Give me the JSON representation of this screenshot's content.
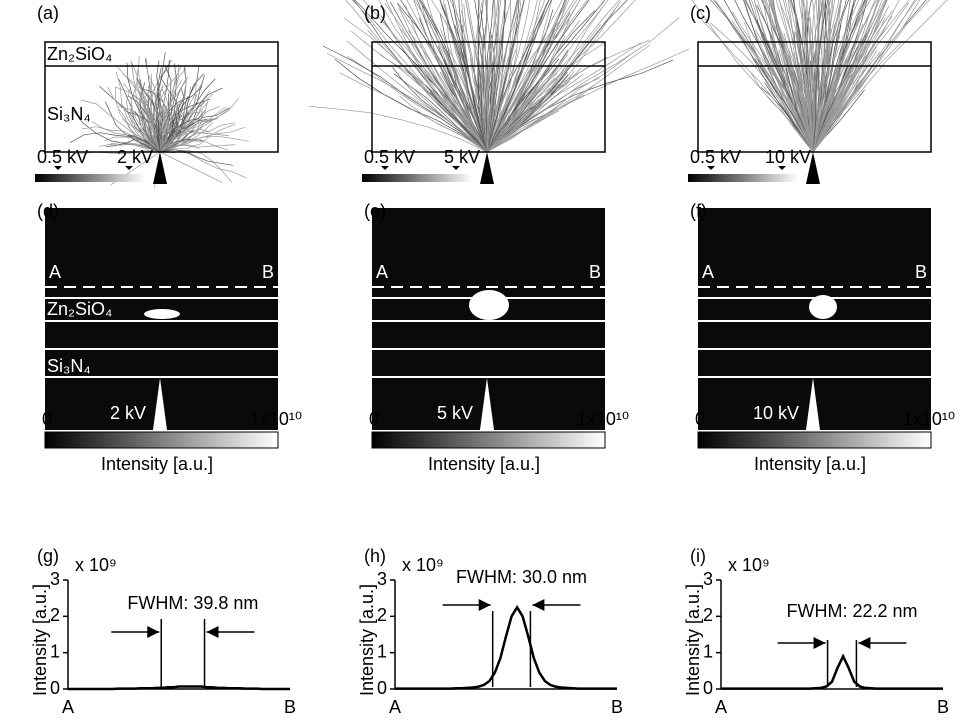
{
  "panels": [
    {
      "label": "(a)",
      "layer_top": "Zn₂SiO₄",
      "layer_bottom": "Si₃N₄",
      "scale_min": "0.5 kV",
      "scale_max": "2 kV"
    },
    {
      "label": "(b)",
      "scale_min": "0.5 kV",
      "scale_max": "5 kV"
    },
    {
      "label": "(c)",
      "scale_min": "0.5 kV",
      "scale_max": "10 kV"
    }
  ],
  "maps": [
    {
      "label": "(d)",
      "point_a": "A",
      "point_b": "B",
      "layer_top": "Zn₂SiO₄",
      "layer_bottom": "Si₃N₄",
      "voltage": "2 kV",
      "cbar_min": "0",
      "cbar_max": "1x10¹⁰",
      "cbar_label": "Intensity [a.u.]"
    },
    {
      "label": "(e)",
      "point_a": "A",
      "point_b": "B",
      "voltage": "5 kV",
      "cbar_min": "0",
      "cbar_max": "1x10¹⁰",
      "cbar_label": "Intensity [a.u.]"
    },
    {
      "label": "(f)",
      "point_a": "A",
      "point_b": "B",
      "voltage": "10 kV",
      "cbar_min": "0",
      "cbar_max": "1x10¹⁰",
      "cbar_label": "Intensity [a.u.]"
    }
  ],
  "chart_data": [
    {
      "type": "line",
      "panel": "(g)",
      "multiplier": "x 10⁹",
      "annotation": "FWHM: 39.8 nm",
      "y_label": "Intensity [a.u.]",
      "color": "#000000",
      "categories": [
        "A",
        null,
        null,
        null,
        null,
        null,
        null,
        null,
        null,
        null,
        null,
        null,
        null,
        null,
        null,
        null,
        null,
        null,
        null,
        null,
        null,
        null,
        null,
        null,
        null,
        null,
        null,
        null,
        null,
        null,
        null,
        null,
        null,
        null,
        null,
        null,
        null,
        null,
        null,
        null,
        "B"
      ],
      "values": [
        0,
        0,
        0,
        0,
        0,
        0,
        0,
        0,
        0,
        0.01,
        0.01,
        0.01,
        0.01,
        0.02,
        0.02,
        0.02,
        0.03,
        0.03,
        0.05,
        0.05,
        0.07,
        0.07,
        0.07,
        0.07,
        0.07,
        0.05,
        0.05,
        0.03,
        0.03,
        0.02,
        0.02,
        0.02,
        0.01,
        0.01,
        0.01,
        0,
        0,
        0,
        0,
        0,
        0
      ],
      "ylim": [
        0,
        3
      ],
      "yticks": [
        0,
        1,
        2,
        3
      ]
    },
    {
      "type": "line",
      "panel": "(h)",
      "multiplier": "x 10⁹",
      "annotation": "FWHM: 30.0 nm",
      "y_label": "Intensity [a.u.]",
      "color": "#000000",
      "categories": [
        "A",
        null,
        null,
        null,
        null,
        null,
        null,
        null,
        null,
        null,
        null,
        null,
        null,
        null,
        null,
        null,
        null,
        null,
        null,
        null,
        null,
        null,
        null,
        null,
        null,
        null,
        null,
        null,
        null,
        null,
        null,
        null,
        null,
        null,
        null,
        null,
        null,
        null,
        null,
        null,
        "B"
      ],
      "values": [
        0.01,
        0.01,
        0.01,
        0.01,
        0.01,
        0.01,
        0.01,
        0.01,
        0.01,
        0.01,
        0.01,
        0.02,
        0.02,
        0.03,
        0.04,
        0.06,
        0.11,
        0.22,
        0.45,
        0.85,
        1.45,
        2.0,
        2.25,
        2.0,
        1.45,
        0.85,
        0.45,
        0.22,
        0.11,
        0.06,
        0.04,
        0.03,
        0.02,
        0.01,
        0.01,
        0.01,
        0.01,
        0.01,
        0.01,
        0.01,
        0.01
      ],
      "ylim": [
        0,
        3
      ],
      "yticks": [
        0,
        1,
        2,
        3
      ]
    },
    {
      "type": "line",
      "panel": "(i)",
      "multiplier": "x 10⁹",
      "annotation": "FWHM: 22.2 nm",
      "y_label": "Intensity [a.u.]",
      "color": "#000000",
      "categories": [
        "A",
        null,
        null,
        null,
        null,
        null,
        null,
        null,
        null,
        null,
        null,
        null,
        null,
        null,
        null,
        null,
        null,
        null,
        null,
        null,
        null,
        null,
        null,
        null,
        null,
        null,
        null,
        null,
        null,
        null,
        null,
        null,
        null,
        null,
        null,
        null,
        null,
        null,
        null,
        null,
        "B"
      ],
      "values": [
        0.01,
        0.01,
        0.01,
        0.01,
        0.01,
        0.01,
        0.01,
        0.01,
        0.01,
        0.01,
        0.01,
        0.01,
        0.01,
        0.01,
        0.01,
        0.01,
        0.01,
        0.02,
        0.03,
        0.07,
        0.2,
        0.58,
        0.9,
        0.58,
        0.2,
        0.07,
        0.03,
        0.02,
        0.01,
        0.01,
        0.01,
        0.01,
        0.01,
        0.01,
        0.01,
        0.01,
        0.01,
        0.01,
        0.01,
        0.01,
        0.01
      ],
      "ylim": [
        0,
        3
      ],
      "yticks": [
        0,
        1,
        2,
        3
      ]
    }
  ]
}
